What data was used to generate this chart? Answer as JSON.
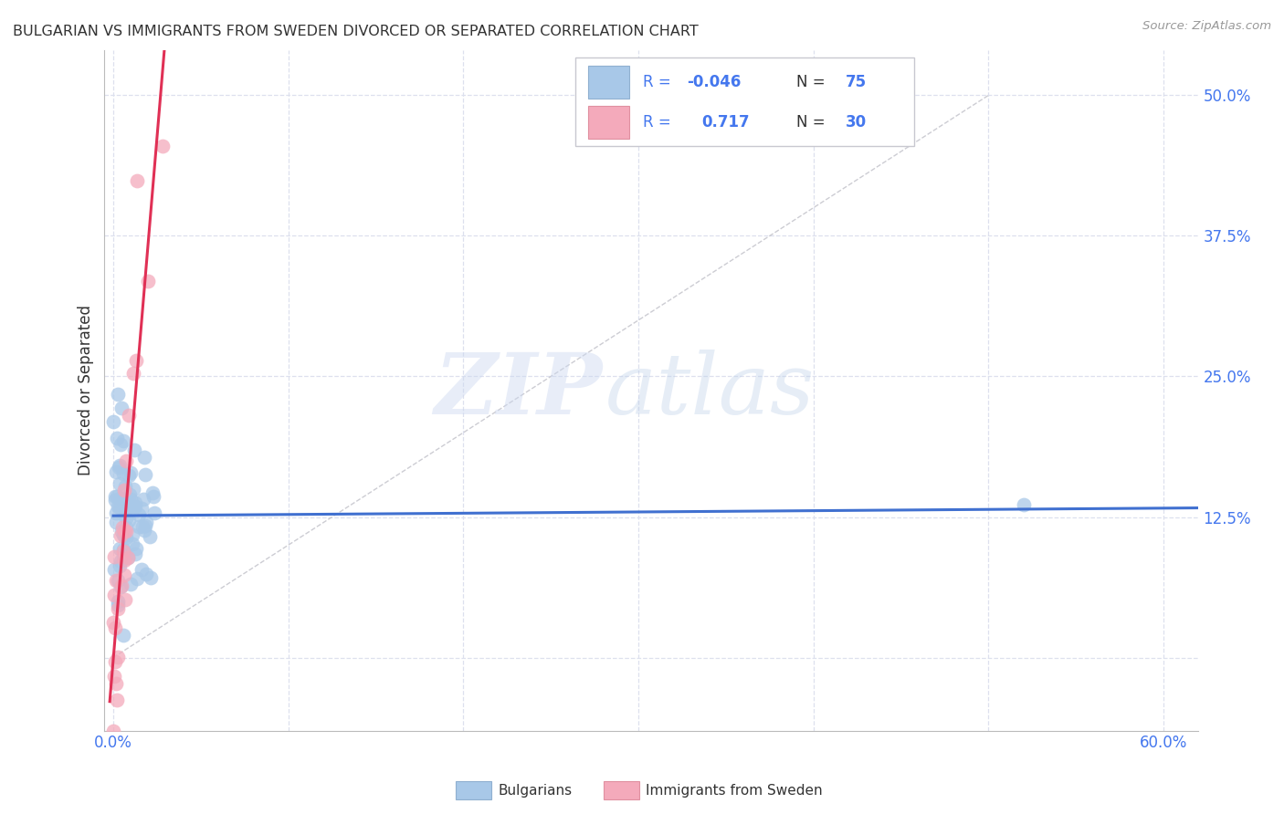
{
  "title": "BULGARIAN VS IMMIGRANTS FROM SWEDEN DIVORCED OR SEPARATED CORRELATION CHART",
  "source": "Source: ZipAtlas.com",
  "ylabel_label": "Divorced or Separated",
  "xlim": [
    -0.005,
    0.62
  ],
  "ylim": [
    -0.065,
    0.54
  ],
  "legend_blue_r": "-0.046",
  "legend_blue_n": "75",
  "legend_pink_r": "0.717",
  "legend_pink_n": "30",
  "blue_color": "#a8c8e8",
  "pink_color": "#f4aabb",
  "blue_line_color": "#4070d0",
  "pink_line_color": "#e03055",
  "diag_line_color": "#c0c0c8",
  "watermark_zip": "ZIP",
  "watermark_atlas": "atlas",
  "background_color": "#ffffff",
  "grid_color": "#dde0ee",
  "title_color": "#333333",
  "label_color": "#4477ee",
  "text_color": "#333333",
  "source_color": "#999999"
}
